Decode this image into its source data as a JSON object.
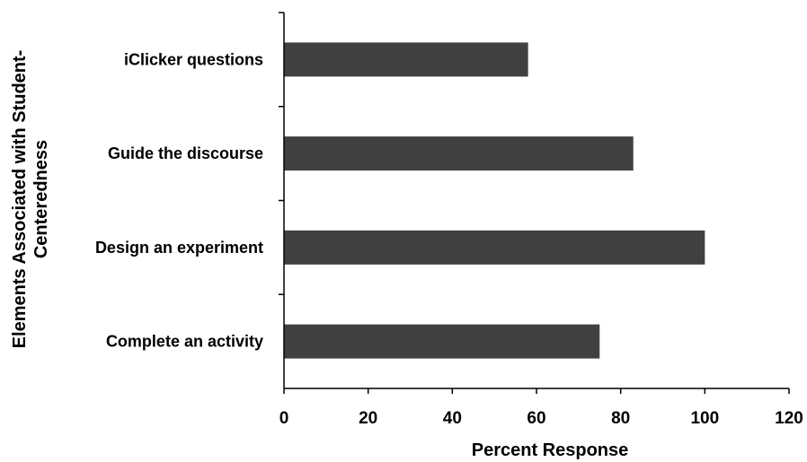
{
  "chart_data": {
    "type": "bar",
    "orientation": "horizontal",
    "categories": [
      "iClicker questions",
      "Guide the discourse",
      "Design an experiment",
      "Complete an activity"
    ],
    "values": [
      58,
      83,
      100,
      75
    ],
    "title": "",
    "xlabel": "Percent Response",
    "ylabel": "Elements Associated with Student-Centeredness",
    "ylabel_lines": [
      "Elements Associated with Student-",
      "Centeredness"
    ],
    "xlim": [
      0,
      120
    ],
    "xticks": [
      0,
      20,
      40,
      60,
      80,
      100,
      120
    ],
    "grid": false,
    "legend": "none",
    "bar_color": "#404040"
  }
}
